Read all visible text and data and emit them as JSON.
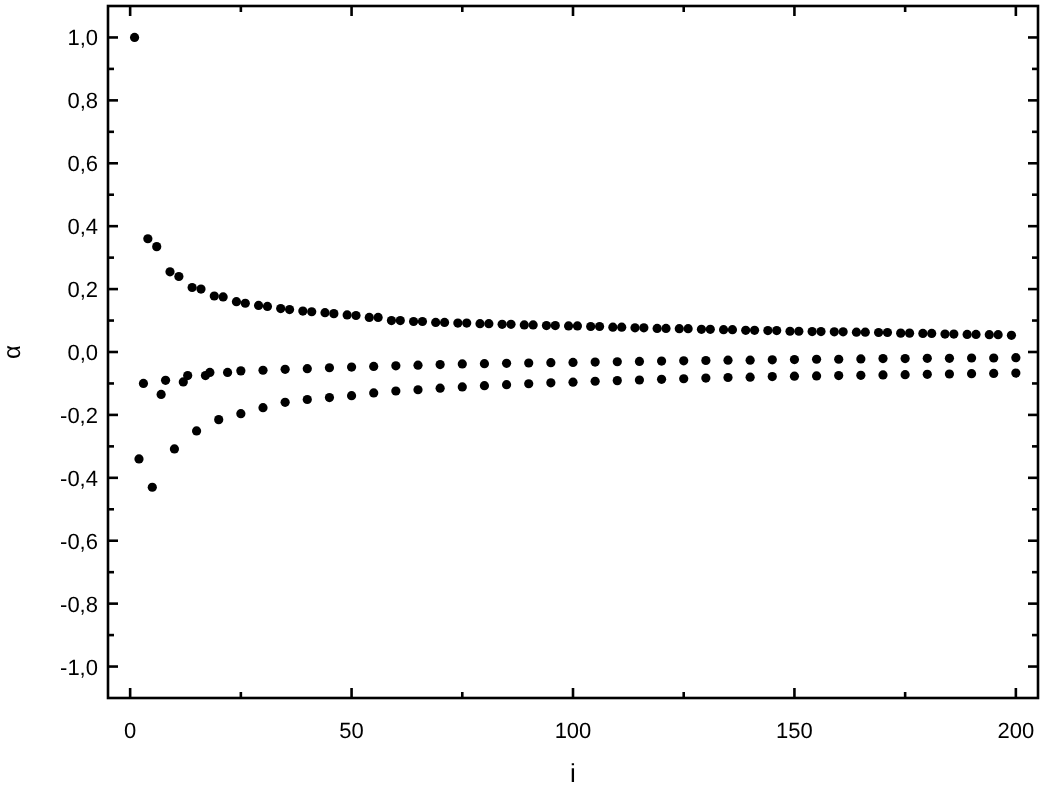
{
  "chart_data": {
    "type": "scatter",
    "xlabel": "i",
    "ylabel": "α",
    "xlim": [
      -5,
      205
    ],
    "ylim": [
      -1.1,
      1.1
    ],
    "xticks": [
      0,
      {
        "value": 25,
        "label": null
      },
      50,
      {
        "value": 75,
        "label": null
      },
      100,
      {
        "value": 125,
        "label": null
      },
      150,
      {
        "value": 175,
        "label": null
      },
      200
    ],
    "yticks": [
      {
        "value": -1,
        "label": "-1,0"
      },
      {
        "value": -0.9,
        "label": null
      },
      {
        "value": -0.8,
        "label": "-0,8"
      },
      {
        "value": -0.7,
        "label": null
      },
      {
        "value": -0.6,
        "label": "-0,6"
      },
      {
        "value": -0.5,
        "label": null
      },
      {
        "value": -0.4,
        "label": "-0,4"
      },
      {
        "value": -0.3,
        "label": null
      },
      {
        "value": -0.2,
        "label": "-0,2"
      },
      {
        "value": -0.1,
        "label": null
      },
      {
        "value": 0,
        "label": "0,0"
      },
      {
        "value": 0.1,
        "label": null
      },
      {
        "value": 0.2,
        "label": "0,2"
      },
      {
        "value": 0.3,
        "label": null
      },
      {
        "value": 0.4,
        "label": "0,4"
      },
      {
        "value": 0.5,
        "label": null
      },
      {
        "value": 0.6,
        "label": "0,6"
      },
      {
        "value": 0.7,
        "label": null
      },
      {
        "value": 0.8,
        "label": "0,8"
      },
      {
        "value": 0.9,
        "label": null
      },
      {
        "value": 1,
        "label": "1,0"
      }
    ],
    "marker": "circle",
    "series": [
      {
        "color": "#000000",
        "x": [
          1,
          4,
          6,
          9,
          11,
          14,
          16,
          19,
          21,
          24,
          26,
          29,
          31,
          34,
          36,
          39,
          41,
          44,
          46,
          49,
          51,
          54,
          56,
          59,
          61,
          64,
          66,
          69,
          71,
          74,
          76,
          79,
          81,
          84,
          86,
          89,
          91,
          94,
          96,
          99,
          101,
          104,
          106,
          109,
          111,
          114,
          116,
          119,
          121,
          124,
          126,
          129,
          131,
          134,
          136,
          139,
          141,
          144,
          146,
          149,
          151,
          154,
          156,
          159,
          161,
          164,
          166,
          169,
          171,
          174,
          176,
          179,
          181,
          184,
          186,
          189,
          191,
          194,
          196,
          199
        ],
        "values": [
          1.0,
          0.36,
          0.335,
          0.255,
          0.24,
          0.205,
          0.2,
          0.178,
          0.175,
          0.16,
          0.155,
          0.148,
          0.145,
          0.138,
          0.135,
          0.13,
          0.128,
          0.125,
          0.122,
          0.118,
          0.116,
          0.11,
          0.11,
          0.1,
          0.1,
          0.097,
          0.097,
          0.094,
          0.094,
          0.092,
          0.092,
          0.09,
          0.09,
          0.088,
          0.088,
          0.086,
          0.086,
          0.084,
          0.084,
          0.083,
          0.083,
          0.081,
          0.081,
          0.079,
          0.079,
          0.077,
          0.077,
          0.075,
          0.075,
          0.074,
          0.074,
          0.072,
          0.072,
          0.071,
          0.071,
          0.069,
          0.069,
          0.068,
          0.068,
          0.066,
          0.066,
          0.065,
          0.065,
          0.064,
          0.064,
          0.063,
          0.063,
          0.062,
          0.062,
          0.06,
          0.06,
          0.059,
          0.059,
          0.057,
          0.057,
          0.056,
          0.056,
          0.055,
          0.055,
          0.053
        ]
      },
      {
        "color": "#000000",
        "x": [
          3,
          7,
          8,
          12,
          13,
          17,
          18,
          22,
          25,
          30,
          35,
          40,
          45,
          50,
          55,
          60,
          65,
          70,
          75,
          80,
          85,
          90,
          95,
          100,
          105,
          110,
          115,
          120,
          125,
          130,
          135,
          140,
          145,
          150,
          155,
          160,
          165,
          170,
          175,
          180,
          185,
          190,
          195,
          200
        ],
        "values": [
          -0.1,
          -0.135,
          -0.09,
          -0.095,
          -0.075,
          -0.075,
          -0.065,
          -0.065,
          -0.06,
          -0.058,
          -0.055,
          -0.053,
          -0.05,
          -0.048,
          -0.046,
          -0.044,
          -0.042,
          -0.04,
          -0.038,
          -0.037,
          -0.036,
          -0.035,
          -0.034,
          -0.033,
          -0.032,
          -0.031,
          -0.03,
          -0.029,
          -0.028,
          -0.027,
          -0.026,
          -0.026,
          -0.025,
          -0.024,
          -0.023,
          -0.023,
          -0.022,
          -0.021,
          -0.021,
          -0.02,
          -0.02,
          -0.019,
          -0.019,
          -0.018
        ]
      },
      {
        "color": "#000000",
        "x": [
          2,
          5,
          10,
          15,
          20,
          25,
          30,
          35,
          40,
          45,
          50,
          55,
          60,
          65,
          70,
          75,
          80,
          85,
          90,
          95,
          100,
          105,
          110,
          115,
          120,
          125,
          130,
          135,
          140,
          145,
          150,
          155,
          160,
          165,
          170,
          175,
          180,
          185,
          190,
          195,
          200
        ],
        "values": [
          -0.34,
          -0.43,
          -0.308,
          -0.251,
          -0.215,
          -0.196,
          -0.177,
          -0.16,
          -0.151,
          -0.145,
          -0.139,
          -0.13,
          -0.124,
          -0.12,
          -0.115,
          -0.111,
          -0.107,
          -0.104,
          -0.101,
          -0.098,
          -0.096,
          -0.093,
          -0.091,
          -0.089,
          -0.087,
          -0.085,
          -0.083,
          -0.081,
          -0.08,
          -0.078,
          -0.077,
          -0.076,
          -0.075,
          -0.074,
          -0.073,
          -0.072,
          -0.071,
          -0.07,
          -0.069,
          -0.068,
          -0.067
        ]
      }
    ]
  }
}
